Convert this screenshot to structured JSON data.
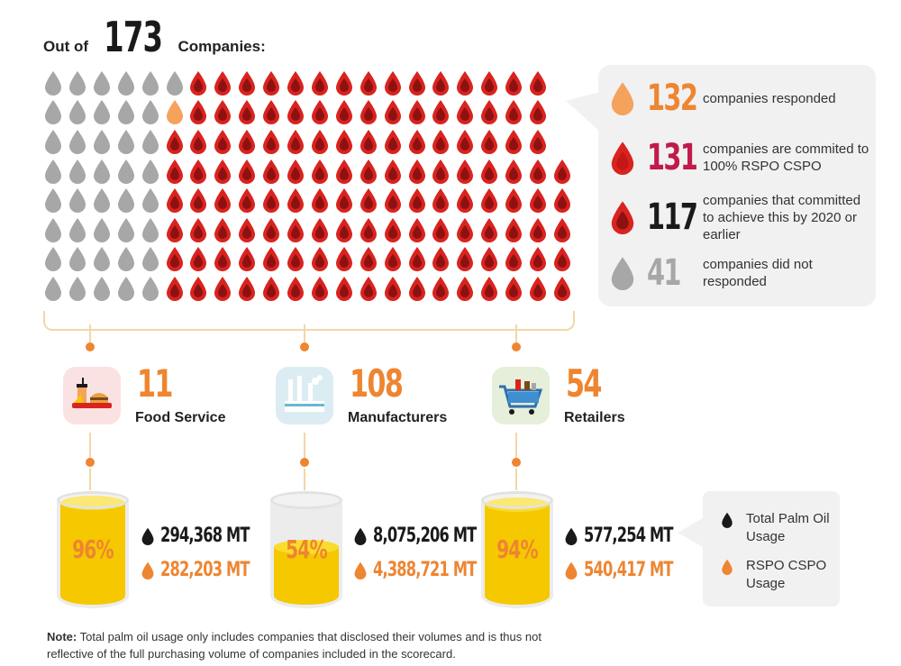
{
  "header": {
    "prefix": "Out of",
    "total": "173",
    "suffix": "Companies:"
  },
  "colors": {
    "grey": "#a7a7a7",
    "light_orange": "#f5a25d",
    "red": "#d9231f",
    "dark_red": "#8c1212",
    "inner_red": "#c41818",
    "orange": "#ee8530",
    "magenta": "#c11a4b",
    "black": "#1a1a1a",
    "yellow": "#f5c800"
  },
  "chart_data": {
    "type": "waffle",
    "total": 173,
    "columns": [
      {
        "grey": 8,
        "orange": 0,
        "responded": 0
      },
      {
        "grey": 8,
        "orange": 0,
        "responded": 0
      },
      {
        "grey": 8,
        "orange": 0,
        "responded": 0
      },
      {
        "grey": 8,
        "orange": 0,
        "responded": 0
      },
      {
        "grey": 8,
        "orange": 0,
        "responded": 0
      },
      {
        "grey": 1,
        "orange": 1,
        "responded": 6
      },
      {
        "grey": 0,
        "orange": 0,
        "responded": 8
      },
      {
        "grey": 0,
        "orange": 0,
        "responded": 8
      },
      {
        "grey": 0,
        "orange": 0,
        "responded": 8
      },
      {
        "grey": 0,
        "orange": 0,
        "responded": 8
      },
      {
        "grey": 0,
        "orange": 0,
        "responded": 8
      },
      {
        "grey": 0,
        "orange": 0,
        "responded": 8
      },
      {
        "grey": 0,
        "orange": 0,
        "responded": 8
      },
      {
        "grey": 0,
        "orange": 0,
        "responded": 8
      },
      {
        "grey": 0,
        "orange": 0,
        "responded": 8
      },
      {
        "grey": 0,
        "orange": 0,
        "responded": 8
      },
      {
        "grey": 0,
        "orange": 0,
        "responded": 8
      },
      {
        "grey": 0,
        "orange": 0,
        "responded": 8
      },
      {
        "grey": 0,
        "orange": 0,
        "responded": 8
      },
      {
        "grey": 0,
        "orange": 0,
        "responded": 8
      },
      {
        "grey": 0,
        "orange": 0,
        "responded": 8
      },
      {
        "grey": 0,
        "orange": 0,
        "responded": 5
      }
    ],
    "legend": [
      {
        "value": "132",
        "text": "companies responded",
        "drop": "light_orange",
        "color": "#ee8530"
      },
      {
        "value": "131",
        "text": "companies are commited to 100% RSPO CSPO",
        "drop": "red_light",
        "color": "#c11a4b"
      },
      {
        "value": "117",
        "text": "companies that committed to achieve this by 2020 or earlier",
        "drop": "red_dark",
        "color": "#1a1a1a"
      },
      {
        "value": "41",
        "text": "companies did not responded",
        "drop": "grey",
        "color": "#a7a7a7"
      }
    ],
    "sectors": [
      {
        "count": "11",
        "name": "Food Service",
        "icon": "food-service-icon",
        "tile_color": "#fbe2e2",
        "pct": "96%",
        "pct_value": 96,
        "total": "294,368 MT",
        "rspo": "282,203 MT"
      },
      {
        "count": "108",
        "name": "Manufacturers",
        "icon": "factory-icon",
        "tile_color": "#dcecf3",
        "pct": "54%",
        "pct_value": 54,
        "total": "8,075,206 MT",
        "rspo": "4,388,721 MT"
      },
      {
        "count": "54",
        "name": "Retailers",
        "icon": "shopping-cart-icon",
        "tile_color": "#e5efd9",
        "pct": "94%",
        "pct_value": 94,
        "total": "577,254 MT",
        "rspo": "540,417 MT"
      }
    ]
  },
  "key": [
    {
      "label": "Total Palm Oil Usage",
      "drop": "black"
    },
    {
      "label": "RSPO CSPO Usage",
      "drop": "orange"
    }
  ],
  "note": {
    "label": "Note:",
    "text": "Total palm oil usage only includes companies that disclosed their volumes and is thus not reflective of the full purchasing volume of companies included in the scorecard."
  }
}
